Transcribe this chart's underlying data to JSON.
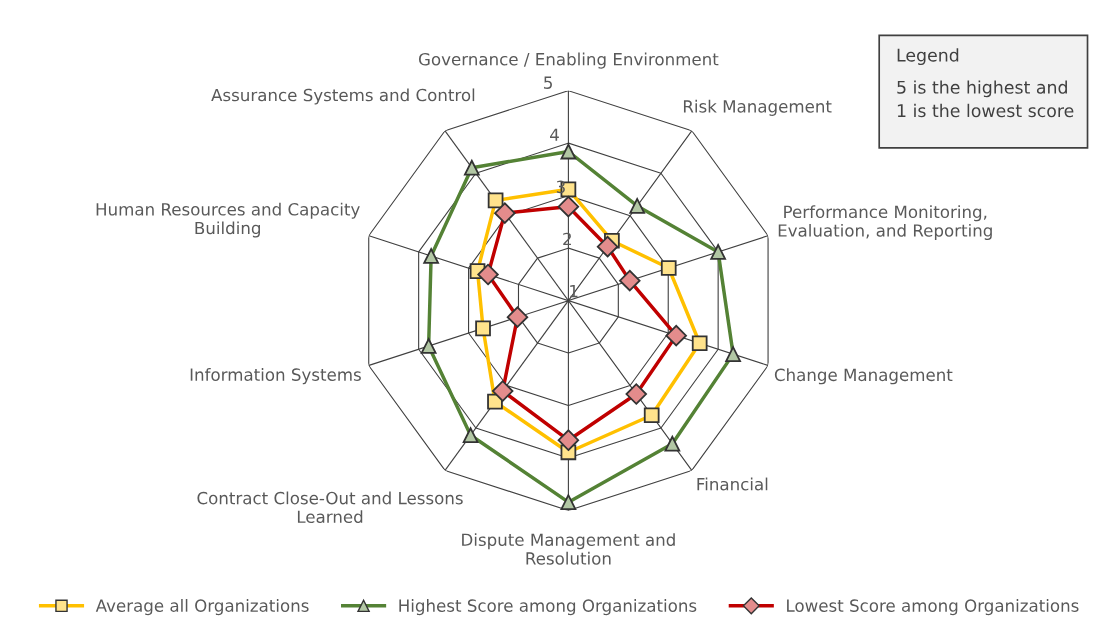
{
  "chart_data": {
    "type": "radar",
    "categories": [
      "Governance / Enabling Environment",
      "Risk Management",
      "Performance Monitoring,\nEvaluation, and Reporting",
      "Change Management",
      "Financial",
      "Dispute Management and\nResolution",
      "Contract Close-Out and Lessons\nLearned",
      "Information Systems",
      "Human Resources and Capacity\nBuilding",
      "Assurance Systems and Control"
    ],
    "series": [
      {
        "name": "Average all Organizations",
        "color": "#ffc000",
        "marker": "square",
        "values": [
          3.12,
          2.41,
          3.01,
          3.63,
          3.7,
          3.89,
          3.38,
          2.71,
          2.82,
          3.36
        ]
      },
      {
        "name": "Highest Score among Organizations",
        "color": "#548235",
        "marker": "triangle",
        "values": [
          3.84,
          3.23,
          4.0,
          4.3,
          4.37,
          4.84,
          4.17,
          3.8,
          3.75,
          4.13
        ]
      },
      {
        "name": "Lowest Score among Organizations",
        "color": "#c00000",
        "marker": "diamond",
        "values": [
          2.79,
          2.27,
          2.23,
          3.16,
          3.2,
          3.66,
          3.13,
          2.02,
          2.61,
          3.06
        ]
      }
    ],
    "ylim": [
      1,
      5
    ],
    "yticks": [
      1,
      2,
      3,
      4,
      5
    ],
    "grid": true,
    "legend": "bottom",
    "annotations": [
      "Legend",
      "5 is the highest and\n1 is the lowest score"
    ]
  }
}
